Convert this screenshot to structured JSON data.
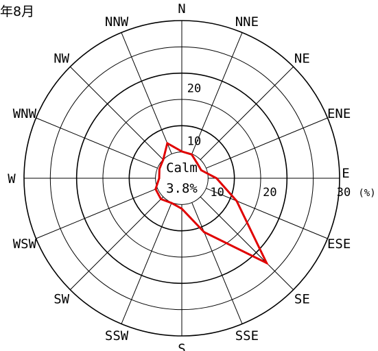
{
  "chart_data": {
    "type": "radar",
    "title": "年8月",
    "directions": [
      "N",
      "NNE",
      "NE",
      "ENE",
      "E",
      "ESE",
      "SE",
      "SSE",
      "S",
      "SSW",
      "SW",
      "WSW",
      "W",
      "WNW",
      "NW",
      "NNW"
    ],
    "values": [
      5.1,
      4.9,
      4.1,
      4.0,
      6.6,
      11.3,
      22.8,
      11.1,
      5.8,
      5.1,
      5.6,
      5.4,
      4.3,
      4.6,
      5.0,
      7.2
    ],
    "calm": {
      "label": "Calm",
      "value": "3.8%"
    },
    "radial_ticks": [
      "10",
      "20",
      "30"
    ],
    "radial_unit": "(%)",
    "rlim": [
      0,
      30
    ],
    "calm_radius": 5,
    "grid": true,
    "series_color": "#e00000"
  }
}
